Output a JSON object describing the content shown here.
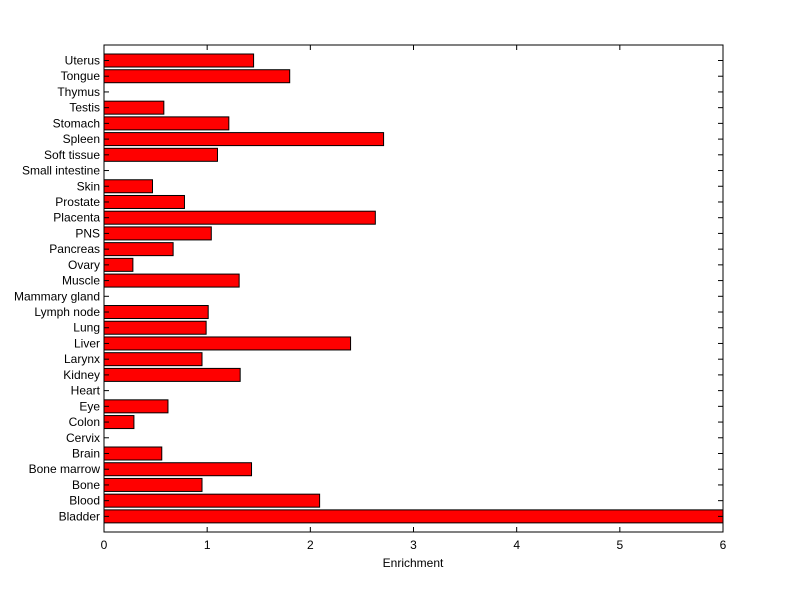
{
  "chart_data": {
    "type": "bar",
    "orientation": "horizontal",
    "title": "",
    "xlabel": "Enrichment",
    "ylabel": "",
    "xlim": [
      0,
      6
    ],
    "xticks": [
      0,
      1,
      2,
      3,
      4,
      5,
      6
    ],
    "grid": false,
    "legend": "none",
    "bar_color": "#ff0000",
    "bar_edge_color": "#000000",
    "categories": [
      "Uterus",
      "Tongue",
      "Thymus",
      "Testis",
      "Stomach",
      "Spleen",
      "Soft tissue",
      "Small intestine",
      "Skin",
      "Prostate",
      "Placenta",
      "PNS",
      "Pancreas",
      "Ovary",
      "Muscle",
      "Mammary gland",
      "Lymph node",
      "Lung",
      "Liver",
      "Larynx",
      "Kidney",
      "Heart",
      "Eye",
      "Colon",
      "Cervix",
      "Brain",
      "Bone marrow",
      "Bone",
      "Blood",
      "Bladder"
    ],
    "values": [
      1.45,
      1.8,
      0,
      0.58,
      1.21,
      2.71,
      1.1,
      0,
      0.47,
      0.78,
      2.63,
      1.04,
      0.67,
      0.28,
      1.31,
      0,
      1.01,
      0.99,
      2.39,
      0.95,
      1.32,
      0,
      0.62,
      0.29,
      0,
      0.56,
      1.43,
      0.95,
      2.09,
      6.0
    ]
  }
}
